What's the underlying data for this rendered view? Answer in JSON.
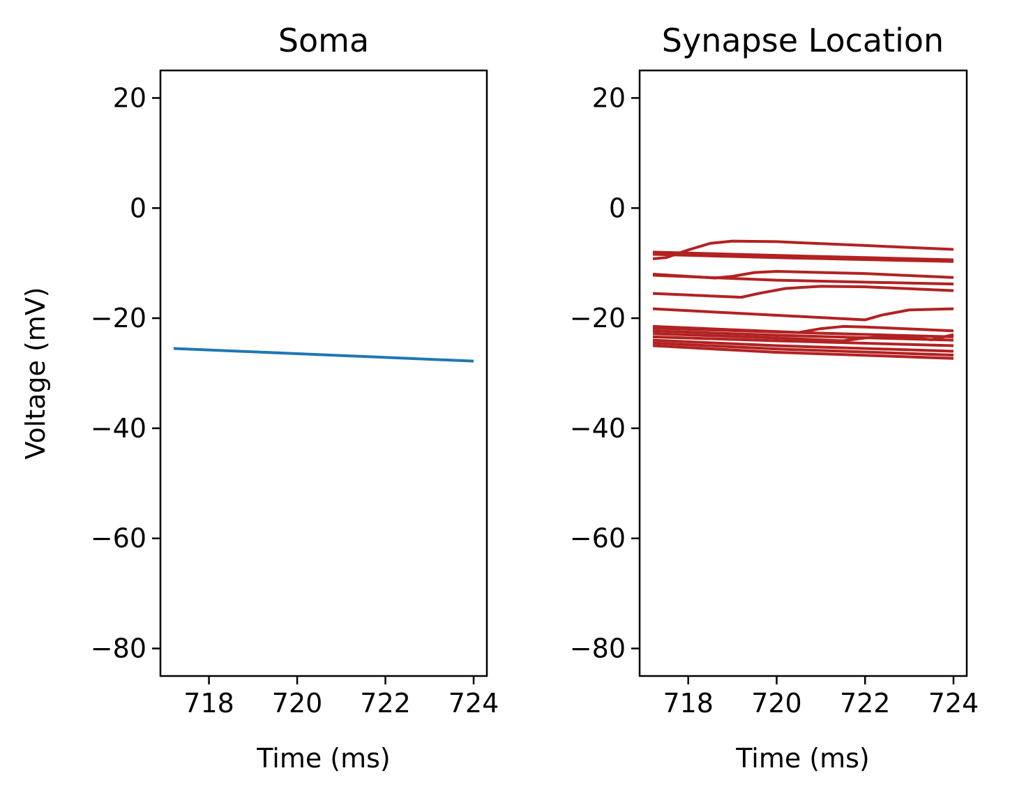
{
  "chart_data": [
    {
      "type": "line",
      "title": "Soma",
      "xlabel": "Time (ms)",
      "ylabel": "Voltage (mV)",
      "xlim": [
        716.9,
        724.3
      ],
      "ylim": [
        -85,
        25
      ],
      "xticks": [
        718,
        720,
        722,
        724
      ],
      "yticks": [
        -80,
        -60,
        -40,
        -20,
        0,
        20
      ],
      "xtick_labels": [
        "718",
        "720",
        "722",
        "724"
      ],
      "ytick_labels": [
        "−80",
        "−60",
        "−40",
        "−20",
        "0",
        "20"
      ],
      "grid": false,
      "series": [
        {
          "color": "#1f77b4",
          "x": [
            717.2,
            724.0
          ],
          "y": [
            -25.5,
            -27.8
          ]
        }
      ]
    },
    {
      "type": "line",
      "title": "Synapse Location",
      "xlabel": "Time (ms)",
      "ylabel": "",
      "xlim": [
        716.9,
        724.3
      ],
      "ylim": [
        -85,
        25
      ],
      "xticks": [
        718,
        720,
        722,
        724
      ],
      "yticks": [
        -80,
        -60,
        -40,
        -20,
        0,
        20
      ],
      "xtick_labels": [
        "718",
        "720",
        "722",
        "724"
      ],
      "ytick_labels": [
        "−80",
        "−60",
        "−40",
        "−20",
        "0",
        "20"
      ],
      "grid": false,
      "series": [
        {
          "color": "#b22222",
          "x": [
            717.2,
            717.5,
            718.0,
            718.5,
            719.0,
            720.0,
            722.0,
            724.0
          ],
          "y": [
            -9.2,
            -9.0,
            -7.6,
            -6.4,
            -6.0,
            -6.1,
            -6.8,
            -7.5
          ]
        },
        {
          "color": "#b22222",
          "x": [
            717.2,
            720.0,
            724.0
          ],
          "y": [
            -8.0,
            -8.6,
            -9.4
          ]
        },
        {
          "color": "#b22222",
          "x": [
            717.2,
            720.0,
            724.0
          ],
          "y": [
            -8.4,
            -9.0,
            -9.7
          ]
        },
        {
          "color": "#b22222",
          "x": [
            717.2,
            718.6,
            719.0,
            719.5,
            720.0,
            722.0,
            724.0
          ],
          "y": [
            -12.0,
            -12.7,
            -12.4,
            -11.7,
            -11.5,
            -11.9,
            -12.6
          ]
        },
        {
          "color": "#b22222",
          "x": [
            717.2,
            720.0,
            724.0
          ],
          "y": [
            -12.2,
            -13.1,
            -13.8
          ]
        },
        {
          "color": "#b22222",
          "x": [
            717.2,
            719.2,
            719.6,
            720.2,
            721.0,
            722.0,
            724.0
          ],
          "y": [
            -15.5,
            -16.2,
            -15.5,
            -14.6,
            -14.2,
            -14.3,
            -15.0
          ]
        },
        {
          "color": "#b22222",
          "x": [
            717.2,
            722.0,
            722.4,
            723.0,
            724.0
          ],
          "y": [
            -18.3,
            -20.3,
            -19.4,
            -18.5,
            -18.3
          ]
        },
        {
          "color": "#b22222",
          "x": [
            717.2,
            720.5,
            721.0,
            721.5,
            722.0,
            724.0
          ],
          "y": [
            -21.5,
            -22.6,
            -21.9,
            -21.5,
            -21.6,
            -22.3
          ]
        },
        {
          "color": "#b22222",
          "x": [
            717.2,
            720.0,
            724.0
          ],
          "y": [
            -21.8,
            -22.5,
            -23.4
          ]
        },
        {
          "color": "#b22222",
          "x": [
            717.2,
            720.0,
            724.0
          ],
          "y": [
            -22.3,
            -23.1,
            -24.0
          ]
        },
        {
          "color": "#b22222",
          "x": [
            717.2,
            720.0,
            721.5,
            722.0,
            722.5,
            723.0,
            723.5,
            724.0
          ],
          "y": [
            -22.8,
            -23.6,
            -24.1,
            -23.6,
            -23.3,
            -23.5,
            -23.9,
            -23.0
          ]
        },
        {
          "color": "#b22222",
          "x": [
            717.2,
            720.0,
            724.0
          ],
          "y": [
            -23.4,
            -24.1,
            -25.0
          ]
        },
        {
          "color": "#b22222",
          "x": [
            717.2,
            720.0,
            724.0
          ],
          "y": [
            -24.0,
            -25.0,
            -26.0
          ]
        },
        {
          "color": "#b22222",
          "x": [
            717.2,
            720.0,
            724.0
          ],
          "y": [
            -24.5,
            -25.6,
            -26.7
          ]
        },
        {
          "color": "#b22222",
          "x": [
            717.2,
            720.0,
            724.0
          ],
          "y": [
            -25.0,
            -26.2,
            -27.3
          ]
        }
      ]
    }
  ]
}
